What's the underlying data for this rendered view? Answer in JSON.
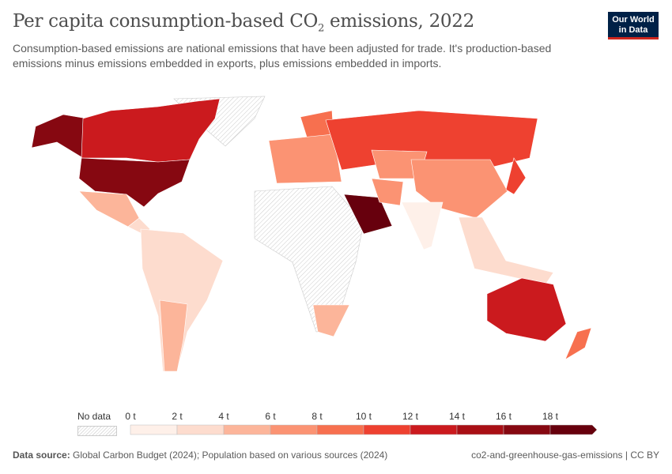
{
  "header": {
    "title_main": "Per capita consumption-based CO",
    "title_sub": "2",
    "title_end": " emissions, 2022",
    "subtitle": "Consumption-based emissions are national emissions that have been adjusted for trade. It's production-based emissions minus emissions embedded in exports, plus emissions embedded in imports.",
    "logo": "Our World in Data",
    "logo_colors": {
      "bg": "#002147",
      "accent": "#ce261e"
    }
  },
  "legend": {
    "no_data": "No data",
    "no_data_color": "hatched",
    "ticks": [
      "0 t",
      "2 t",
      "4 t",
      "6 t",
      "8 t",
      "10 t",
      "12 t",
      "14 t",
      "16 t",
      "18 t"
    ],
    "bins": [
      "#fef0e9",
      "#fddcce",
      "#fcb59a",
      "#fb9373",
      "#f7704f",
      "#ee4130",
      "#cb1a1e",
      "#a90f15",
      "#860811",
      "#67000d"
    ]
  },
  "footer": {
    "source_label": "Data source:",
    "source": "Global Carbon Budget (2024); Population based on various sources (2024)",
    "slug": "co2-and-greenhouse-gas-emissions | CC BY"
  }
}
